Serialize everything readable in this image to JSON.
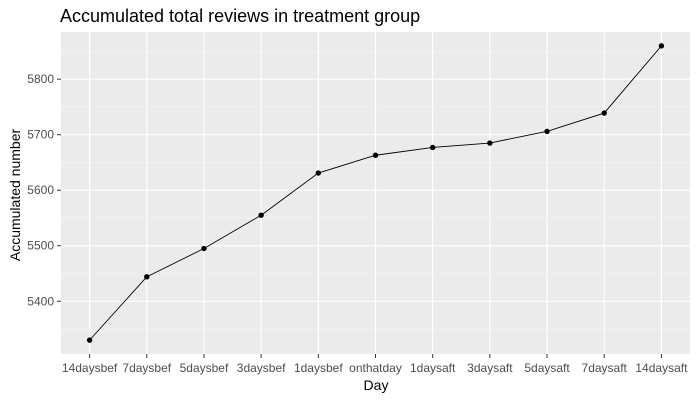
{
  "chart_data": {
    "type": "line",
    "title": "Accumulated total reviews in treatment group",
    "xlabel": "Day",
    "ylabel": "Accumulated number",
    "categories": [
      "14daysbef",
      "7daysbef",
      "5daysbef",
      "3daysbef",
      "1daysbef",
      "onthatday",
      "1daysaft",
      "3daysaft",
      "5daysaft",
      "7daysaft",
      "14daysaft"
    ],
    "series": [
      {
        "values": [
          5330,
          5444,
          5495,
          5555,
          5631,
          5663,
          5677,
          5685,
          5706,
          5739,
          5860
        ],
        "line_color": "#000000",
        "point_color": "#000000"
      }
    ],
    "yticks": [
      5400,
      5500,
      5600,
      5700,
      5800
    ],
    "ylim": [
      5305,
      5885
    ],
    "grid": true,
    "legend": "none",
    "colors": {
      "panel_background": "#ebebeb",
      "grid_major": "#ffffff",
      "grid_minor": "#f5f5f5",
      "tick_label": "#4d4d4d",
      "tick_mark": "#333333"
    }
  }
}
